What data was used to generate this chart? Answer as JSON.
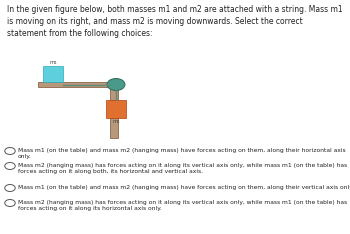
{
  "title_text": "In the given figure below, both masses m1 and m2 are attached with a string. Mass m1\nis moving on its right, and mass m2 is moving downwards. Select the correct\nstatement from the following choices:",
  "choices": [
    "Mass m1 (on the table) and mass m2 (hanging mass) have forces acting on them, along their horizontal axis\nonly.",
    "Mass m2 (hanging mass) has forces acting on it along its vertical axis only, while mass m1 (on the table) has\nforces acting on it along both, its horizontal and vertical axis.",
    "Mass m1 (on the table) and mass m2 (hanging mass) have forces acting on them, along their vertical axis only.",
    "Mass m2 (hanging mass) has forces acting on it along its vertical axis only, while mass m1 (on the table) has\nforces acting on it along its horizontal axis only."
  ],
  "table_color": "#b8977a",
  "m1_color": "#5ecfdc",
  "m2_color": "#e07030",
  "pulley_color": "#4a9a8a",
  "string_color": "#5a8a7a",
  "bg_color": "#ffffff",
  "text_color": "#222222",
  "fig_w": 3.5,
  "fig_h": 2.34,
  "dpi": 100
}
